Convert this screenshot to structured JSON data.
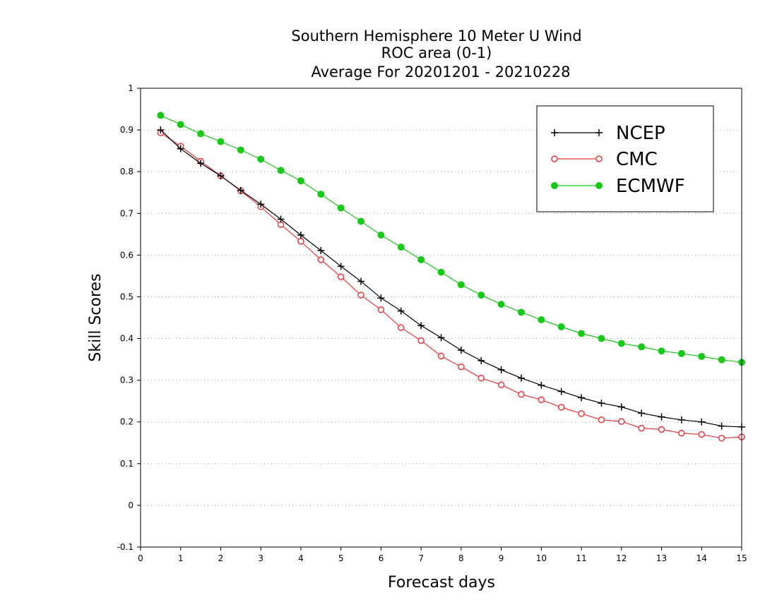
{
  "chart_data": {
    "type": "line",
    "title": [
      "Southern Hemisphere 10 Meter U Wind",
      "ROC area (0-1)",
      "Average For 20201201 - 20210228"
    ],
    "xlabel": "Forecast days",
    "ylabel": "Skill Scores",
    "xlim": [
      0,
      15
    ],
    "ylim": [
      -0.1,
      1
    ],
    "xticks": [
      "0",
      "1",
      "2",
      "3",
      "4",
      "5",
      "6",
      "7",
      "8",
      "9",
      "10",
      "11",
      "12",
      "13",
      "14",
      "15"
    ],
    "yticks": [
      "-0.1",
      "0",
      "0.1",
      "0.2",
      "0.3",
      "0.4",
      "0.5",
      "0.6",
      "0.7",
      "0.8",
      "0.9",
      "1"
    ],
    "grid": "horizontal dotted",
    "legend_position": "top-right",
    "x": [
      0.5,
      1,
      1.5,
      2,
      2.5,
      3,
      3.5,
      4,
      4.5,
      5,
      5.5,
      6,
      6.5,
      7,
      7.5,
      8,
      8.5,
      9,
      9.5,
      10,
      10.5,
      11,
      11.5,
      12,
      12.5,
      13,
      13.5,
      14,
      14.5,
      15
    ],
    "series": [
      {
        "name": "NCEP",
        "color": "#000000",
        "marker": "plus",
        "values": [
          0.9,
          0.855,
          0.82,
          0.79,
          0.755,
          0.722,
          0.686,
          0.648,
          0.611,
          0.573,
          0.537,
          0.497,
          0.466,
          0.431,
          0.402,
          0.372,
          0.347,
          0.325,
          0.305,
          0.288,
          0.273,
          0.258,
          0.245,
          0.236,
          0.221,
          0.212,
          0.205,
          0.2,
          0.19,
          0.188
        ]
      },
      {
        "name": "CMC",
        "color": "#e8383d",
        "marker": "open-circle",
        "values": [
          0.893,
          0.861,
          0.825,
          0.79,
          0.754,
          0.716,
          0.673,
          0.633,
          0.589,
          0.548,
          0.504,
          0.469,
          0.426,
          0.395,
          0.358,
          0.332,
          0.305,
          0.289,
          0.266,
          0.253,
          0.235,
          0.22,
          0.205,
          0.201,
          0.185,
          0.182,
          0.173,
          0.17,
          0.161,
          0.164
        ]
      },
      {
        "name": "ECMWF",
        "color": "#19c819",
        "marker": "filled-circle",
        "values": [
          0.935,
          0.913,
          0.891,
          0.872,
          0.852,
          0.83,
          0.803,
          0.778,
          0.746,
          0.713,
          0.681,
          0.648,
          0.619,
          0.589,
          0.559,
          0.529,
          0.504,
          0.482,
          0.463,
          0.445,
          0.428,
          0.412,
          0.4,
          0.388,
          0.38,
          0.37,
          0.364,
          0.357,
          0.349,
          0.343
        ]
      }
    ]
  }
}
